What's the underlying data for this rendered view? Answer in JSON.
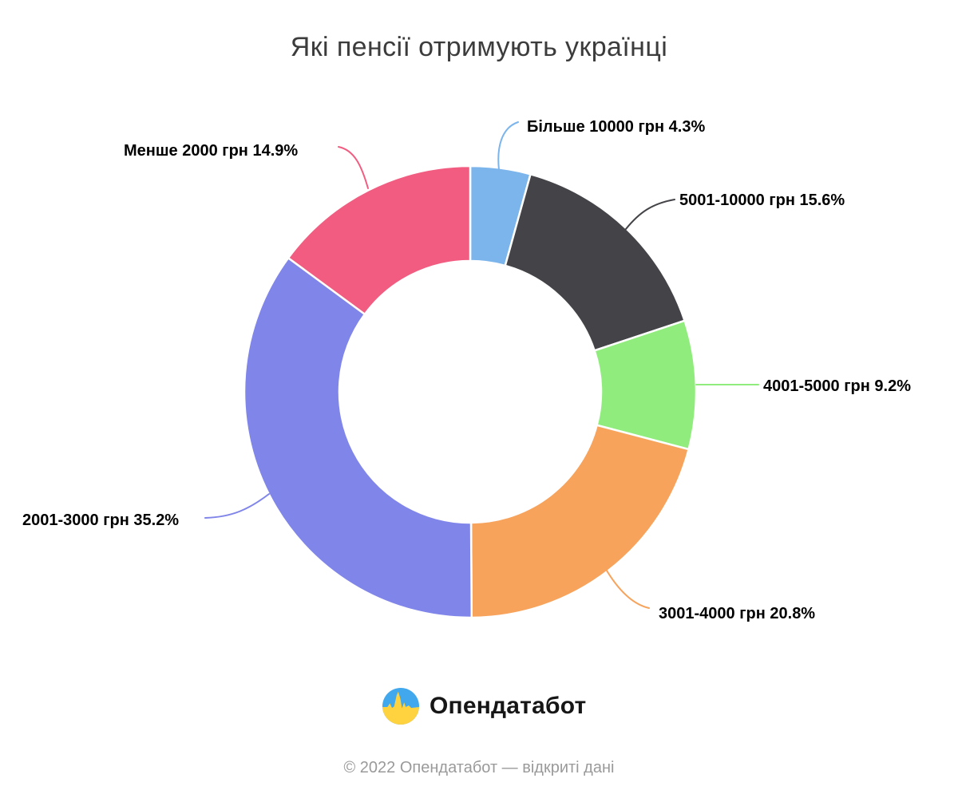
{
  "title": "Які пенсії отримують українці",
  "chart_data": {
    "type": "pie",
    "donut": true,
    "title": "Які пенсії отримують українці",
    "legend": "none",
    "start_angle_deg": 0,
    "direction": "clockwise",
    "inner_radius_ratio": 0.58,
    "label_style": "outside-bold-black-with-colored-connectors",
    "slices": [
      {
        "id": "bilshe-10000",
        "label": "Більше 10000 грн",
        "value": 4.3,
        "display": "Більше 10000 грн 4.3%",
        "color": "#7cb5ec"
      },
      {
        "id": "5001-10000",
        "label": "5001-10000 грн",
        "value": 15.6,
        "display": "5001-10000 грн 15.6%",
        "color": "#434348"
      },
      {
        "id": "4001-5000",
        "label": "4001-5000 грн",
        "value": 9.2,
        "display": "4001-5000 грн 9.2%",
        "color": "#90ed7d"
      },
      {
        "id": "3001-4000",
        "label": "3001-4000 грн",
        "value": 20.8,
        "display": "3001-4000 грн 20.8%",
        "color": "#f7a35c"
      },
      {
        "id": "2001-3000",
        "label": "2001-3000 грн",
        "value": 35.2,
        "display": "2001-3000 грн 35.2%",
        "color": "#8085e9"
      },
      {
        "id": "menshe-2000",
        "label": "Менше 2000 грн",
        "value": 14.9,
        "display": "Менше 2000 грн 14.9%",
        "color": "#f15c80"
      }
    ]
  },
  "branding": {
    "logo_text": "Опендатабот",
    "logo_icon": "opendatabot-pulse-icon",
    "logo_colors": {
      "top": "#41a8ee",
      "bottom": "#ffd23f"
    }
  },
  "footer": {
    "copyright": "© 2022 Опендатабот — відкриті дані"
  }
}
